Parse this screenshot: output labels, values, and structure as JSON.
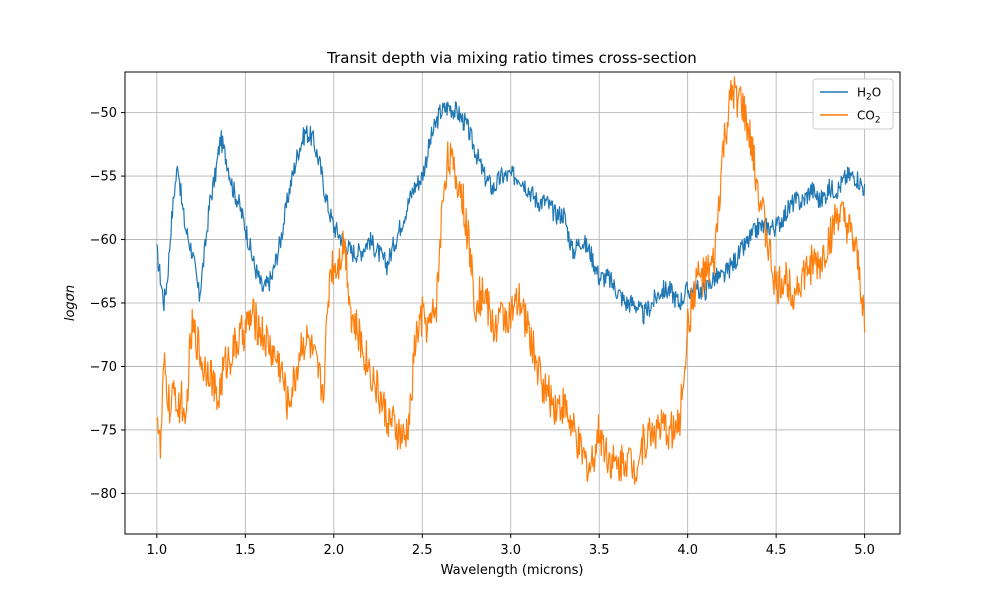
{
  "chart_data": {
    "type": "line",
    "title": "Transit depth via mixing ratio times cross-section",
    "xlabel": "Wavelength (microns)",
    "ylabel": "logσn",
    "xlim": [
      0.82,
      5.2
    ],
    "ylim": [
      -83.2,
      -46.8
    ],
    "xticks": [
      1.0,
      1.5,
      2.0,
      2.5,
      3.0,
      3.5,
      4.0,
      4.5,
      5.0
    ],
    "xtick_labels": [
      "1.0",
      "1.5",
      "2.0",
      "2.5",
      "3.0",
      "3.5",
      "4.0",
      "4.5",
      "5.0"
    ],
    "yticks": [
      -80,
      -75,
      -70,
      -65,
      -60,
      -55,
      -50
    ],
    "ytick_labels": [
      "−80",
      "−75",
      "−70",
      "−65",
      "−60",
      "−55",
      "−50"
    ],
    "grid": true,
    "legend_position": "top-right",
    "series": [
      {
        "name": "H₂O",
        "legend_main": "H",
        "legend_sub": "2",
        "legend_tail": "O",
        "color": "#1f77b4",
        "x": [
          1.0,
          1.02,
          1.04,
          1.06,
          1.08,
          1.1,
          1.12,
          1.14,
          1.16,
          1.2,
          1.24,
          1.27,
          1.3,
          1.33,
          1.36,
          1.38,
          1.4,
          1.43,
          1.46,
          1.5,
          1.55,
          1.6,
          1.65,
          1.7,
          1.75,
          1.8,
          1.84,
          1.88,
          1.92,
          1.96,
          2.0,
          2.05,
          2.1,
          2.15,
          2.2,
          2.25,
          2.3,
          2.35,
          2.4,
          2.45,
          2.5,
          2.55,
          2.6,
          2.65,
          2.7,
          2.75,
          2.8,
          2.85,
          2.9,
          2.95,
          3.0,
          3.05,
          3.1,
          3.15,
          3.2,
          3.25,
          3.3,
          3.35,
          3.4,
          3.45,
          3.5,
          3.55,
          3.6,
          3.65,
          3.7,
          3.75,
          3.8,
          3.85,
          3.9,
          3.95,
          4.0,
          4.05,
          4.1,
          4.15,
          4.2,
          4.25,
          4.3,
          4.35,
          4.4,
          4.45,
          4.5,
          4.55,
          4.6,
          4.65,
          4.7,
          4.75,
          4.8,
          4.85,
          4.9,
          4.95,
          5.0
        ],
        "y": [
          -61,
          -63,
          -65,
          -63,
          -59,
          -56,
          -54,
          -57,
          -59,
          -61,
          -64.5,
          -61,
          -57,
          -55,
          -52,
          -53,
          -54,
          -56,
          -57,
          -59,
          -62,
          -64,
          -63,
          -60,
          -56,
          -53,
          -51.5,
          -52,
          -54,
          -57,
          -59,
          -60,
          -61,
          -61,
          -60,
          -61,
          -62,
          -60,
          -58,
          -56,
          -55,
          -52,
          -50,
          -49.5,
          -50,
          -51,
          -53,
          -55,
          -56,
          -55,
          -55,
          -55,
          -56,
          -57,
          -57,
          -58,
          -58,
          -61,
          -60,
          -61,
          -63,
          -63,
          -64,
          -65,
          -65,
          -66,
          -65,
          -64,
          -64,
          -65,
          -64,
          -64,
          -64,
          -63,
          -63,
          -62,
          -61,
          -60,
          -59,
          -59,
          -59,
          -58,
          -57,
          -57,
          -56,
          -57,
          -56,
          -56,
          -55,
          -55,
          -56
        ],
        "noise_amp": 0.8
      },
      {
        "name": "CO₂",
        "legend_main": "CO",
        "legend_sub": "2",
        "legend_tail": "",
        "color": "#ff7f0e",
        "x": [
          1.0,
          1.02,
          1.04,
          1.06,
          1.08,
          1.1,
          1.12,
          1.14,
          1.16,
          1.18,
          1.2,
          1.23,
          1.26,
          1.3,
          1.34,
          1.38,
          1.42,
          1.46,
          1.5,
          1.54,
          1.58,
          1.62,
          1.66,
          1.7,
          1.74,
          1.78,
          1.82,
          1.86,
          1.9,
          1.94,
          1.98,
          2.02,
          2.06,
          2.1,
          2.15,
          2.2,
          2.25,
          2.3,
          2.35,
          2.4,
          2.43,
          2.46,
          2.5,
          2.54,
          2.58,
          2.62,
          2.65,
          2.68,
          2.72,
          2.76,
          2.8,
          2.85,
          2.9,
          2.95,
          3.0,
          3.05,
          3.1,
          3.15,
          3.2,
          3.25,
          3.3,
          3.35,
          3.4,
          3.45,
          3.5,
          3.55,
          3.6,
          3.65,
          3.7,
          3.75,
          3.8,
          3.85,
          3.9,
          3.95,
          4.0,
          4.05,
          4.1,
          4.15,
          4.2,
          4.25,
          4.3,
          4.35,
          4.4,
          4.45,
          4.5,
          4.55,
          4.6,
          4.65,
          4.7,
          4.75,
          4.8,
          4.85,
          4.9,
          4.95,
          5.0
        ],
        "y": [
          -73,
          -77,
          -70,
          -72,
          -74,
          -71,
          -74,
          -72,
          -76,
          -70,
          -67,
          -68,
          -70,
          -70,
          -73,
          -70,
          -69,
          -68,
          -67,
          -66,
          -67,
          -68,
          -69,
          -70,
          -73,
          -71,
          -68,
          -68,
          -70,
          -72,
          -62,
          -62,
          -60,
          -66,
          -68,
          -70,
          -72,
          -74,
          -75,
          -76,
          -74,
          -68,
          -66,
          -67,
          -65,
          -56,
          -53,
          -55,
          -56,
          -60,
          -65,
          -64,
          -67,
          -66,
          -66,
          -65,
          -67,
          -70,
          -72,
          -73,
          -73,
          -75,
          -77,
          -78,
          -75,
          -77,
          -78,
          -77,
          -78,
          -76,
          -75,
          -75,
          -75,
          -75,
          -67,
          -63,
          -63,
          -62,
          -53,
          -48.5,
          -49,
          -52,
          -56,
          -60,
          -64,
          -63,
          -64,
          -63,
          -62,
          -62,
          -60,
          -58,
          -59,
          -61,
          -66
        ],
        "noise_amp": 1.6
      }
    ]
  }
}
